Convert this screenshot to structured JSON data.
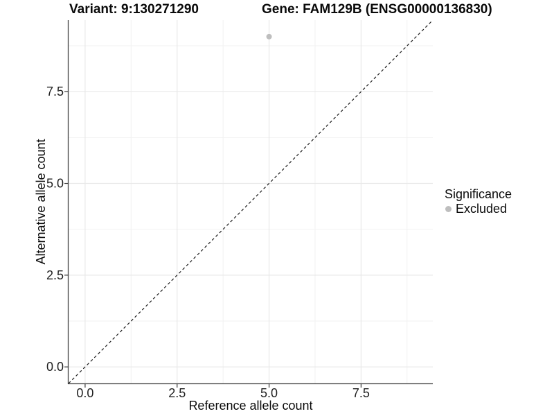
{
  "chart_data": {
    "type": "scatter",
    "title_left": "Variant: 9:130271290",
    "title_right": "Gene: FAM129B (ENSG00000136830)",
    "xlabel": "Reference allele count",
    "ylabel": "Alternative allele count",
    "xlim": [
      -0.45,
      9.45
    ],
    "ylim": [
      -0.45,
      9.45
    ],
    "x_ticks": [
      0,
      2.5,
      5,
      7.5
    ],
    "y_ticks": [
      0,
      2.5,
      5,
      7.5
    ],
    "x_minor_ticks": [
      1.25,
      3.75,
      6.25,
      8.75
    ],
    "y_minor_ticks": [
      1.25,
      3.75,
      6.25,
      8.75
    ],
    "tick_label_decimals": 1,
    "grid": true,
    "legend_position": "right",
    "points": [
      {
        "x": 5,
        "y": 9,
        "series": "Excluded"
      }
    ],
    "reference_line": {
      "slope": 1,
      "intercept": 0,
      "style": "dashed"
    },
    "legend": {
      "title": "Significance",
      "entries": [
        {
          "label": "Excluded",
          "color": "#bebebe"
        }
      ]
    },
    "colors": {
      "point": "#bebebe",
      "grid_major": "#e8e8e8",
      "grid_minor": "#f2f2f2",
      "axis_line": "#404040",
      "tick_mark": "#333333",
      "tick_label": "#1f1f1f",
      "reference_line": "#1a1a1a",
      "background": "#ffffff"
    }
  }
}
